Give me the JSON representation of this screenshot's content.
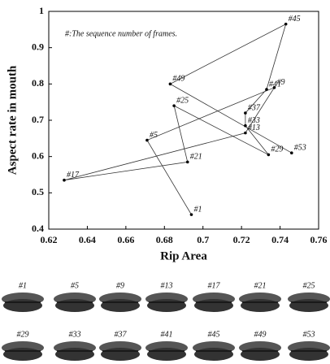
{
  "chart_data": {
    "type": "line",
    "annotation": "#:The sequence number of frames.",
    "x_label": "Rip Area",
    "y_label": "Aspect rate in mouth",
    "xlim": [
      0.62,
      0.76
    ],
    "xticks": [
      0.62,
      0.64,
      0.66,
      0.68,
      0.7,
      0.72,
      0.74,
      0.76
    ],
    "ylim": [
      0.4,
      1
    ],
    "yticks": [
      0.4,
      0.5,
      0.6,
      0.7,
      0.8,
      0.9,
      1
    ],
    "series": [
      {
        "color": "#333333",
        "point_labels": [
          "#1",
          "#5",
          "#9",
          "#13",
          "#17",
          "#21",
          "#25",
          "#29",
          "#33",
          "#37",
          "#41",
          "#45",
          "#49",
          "#53"
        ],
        "x": [
          0.694,
          0.671,
          0.737,
          0.722,
          0.628,
          0.692,
          0.685,
          0.734,
          0.722,
          0.722,
          0.733,
          0.743,
          0.683,
          0.746
        ],
        "y": [
          0.44,
          0.645,
          0.79,
          0.665,
          0.535,
          0.585,
          0.74,
          0.605,
          0.685,
          0.72,
          0.785,
          0.965,
          0.8,
          0.61
        ]
      }
    ],
    "frames": [
      "#1",
      "#5",
      "#9",
      "#13",
      "#17",
      "#21",
      "#25",
      "#29",
      "#33",
      "#37",
      "#41",
      "#45",
      "#49",
      "#53"
    ]
  }
}
